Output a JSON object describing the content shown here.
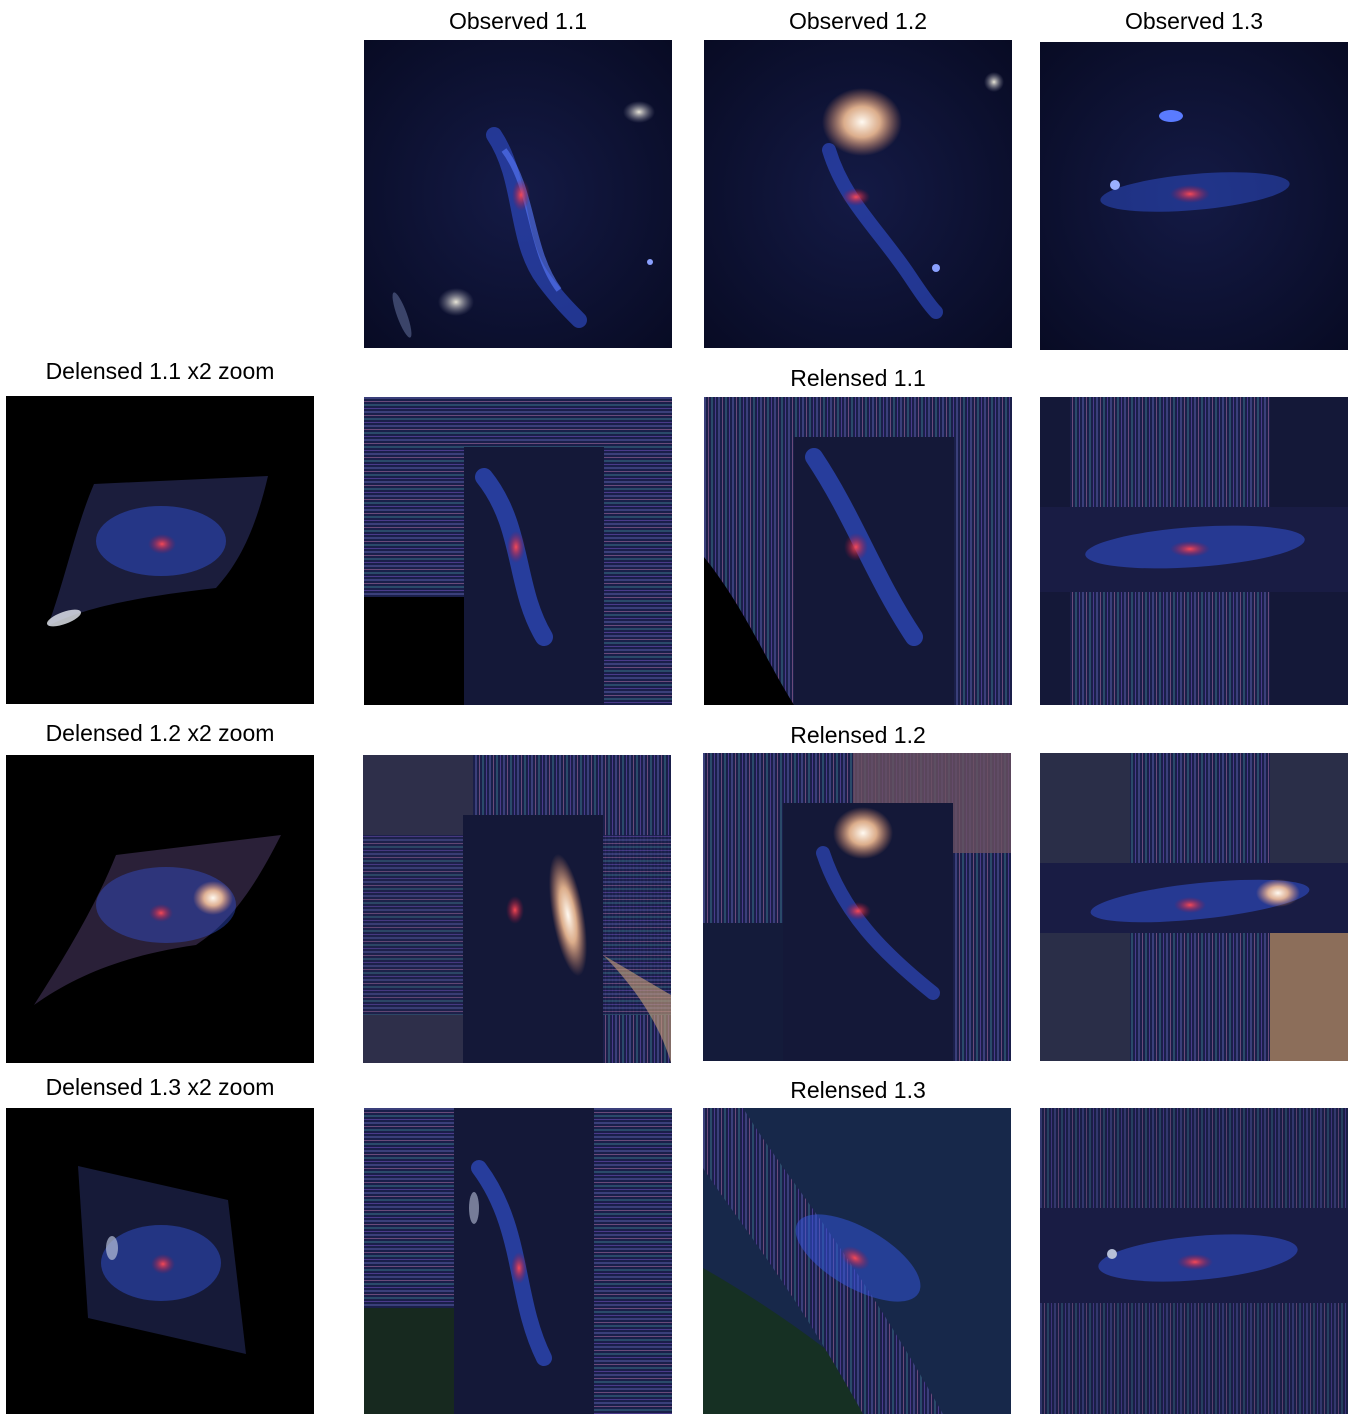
{
  "column_labels": {
    "observed_1": "Observed 1.1",
    "observed_2": "Observed 1.2",
    "observed_3": "Observed 1.3"
  },
  "row_labels": {
    "delensed_1": "Delensed 1.1 x2 zoom",
    "delensed_2": "Delensed 1.2 x2 zoom",
    "delensed_3": "Delensed 1.3 x2 zoom",
    "relensed_1": "Relensed 1.1",
    "relensed_2": "Relensed 1.2",
    "relensed_3": "Relensed 1.3"
  },
  "colors": {
    "background": "#ffffff",
    "sky": "#0b0f2e",
    "galaxy_arm": "#3a5cff",
    "galaxy_core": "#e0283a",
    "foreground_galaxy": "#ffd9b0"
  }
}
